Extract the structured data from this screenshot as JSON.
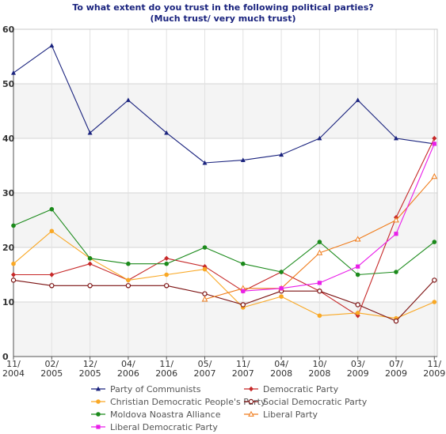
{
  "chart_data": {
    "type": "line",
    "title": "To what extent do you trust in the following political parties?",
    "subtitle": "(Much trust/ very much trust)",
    "xlabel": "",
    "ylabel": "",
    "ylim": [
      0,
      60
    ],
    "yticks": [
      "0",
      "10",
      "20",
      "30",
      "40",
      "50",
      "60"
    ],
    "grid": true,
    "legend_placement": "bottom",
    "categories": [
      [
        "11/",
        "2004"
      ],
      [
        "02/",
        "2005"
      ],
      [
        "12/",
        "2005"
      ],
      [
        "04/",
        "2006"
      ],
      [
        "11/",
        "2006"
      ],
      [
        "05/",
        "2007"
      ],
      [
        "11/",
        "2007"
      ],
      [
        "04/",
        "2008"
      ],
      [
        "10/",
        "2008"
      ],
      [
        "03/",
        "2009"
      ],
      [
        "07/",
        "2009"
      ],
      [
        "11/",
        "2009"
      ]
    ],
    "series": [
      {
        "name": "Party of Communists",
        "color": "#1a237e",
        "marker": "triangle",
        "values": [
          52,
          57,
          41,
          47,
          41,
          35.5,
          36,
          37,
          40,
          47,
          40,
          39
        ]
      },
      {
        "name": "Democratic Party",
        "color": "#c62828",
        "marker": "diamond",
        "values": [
          15,
          15,
          17,
          14,
          18,
          16.5,
          12,
          15.5,
          12,
          7.5,
          25.5,
          40
        ]
      },
      {
        "name": "Christian Democratic People's Party",
        "color": "#f9a825",
        "marker": "circle",
        "values": [
          17,
          23,
          18,
          14,
          15,
          16,
          9,
          11,
          7.5,
          8,
          7,
          10
        ]
      },
      {
        "name": "Social Democratic Party",
        "color": "#7b1010",
        "marker": "hollow-circle",
        "values": [
          14,
          13,
          13,
          13,
          13,
          11.5,
          9.5,
          12,
          12,
          9.5,
          6.5,
          14
        ]
      },
      {
        "name": "Moldova Noastra Alliance",
        "color": "#1b8a1b",
        "marker": "circle",
        "values": [
          24,
          27,
          18,
          17,
          17,
          20,
          17,
          15.5,
          21,
          15,
          15.5,
          21
        ]
      },
      {
        "name": "Liberal Party",
        "color": "#ef7b1a",
        "marker": "triangle-open",
        "values": [
          null,
          null,
          null,
          null,
          null,
          10.5,
          12.5,
          12.5,
          19,
          21.5,
          25,
          33
        ]
      },
      {
        "name": "Liberal Democratic Party",
        "color": "#e91ee9",
        "marker": "square",
        "values": [
          null,
          null,
          null,
          null,
          null,
          null,
          12,
          12.5,
          13.5,
          16.5,
          22.5,
          39
        ]
      }
    ]
  }
}
